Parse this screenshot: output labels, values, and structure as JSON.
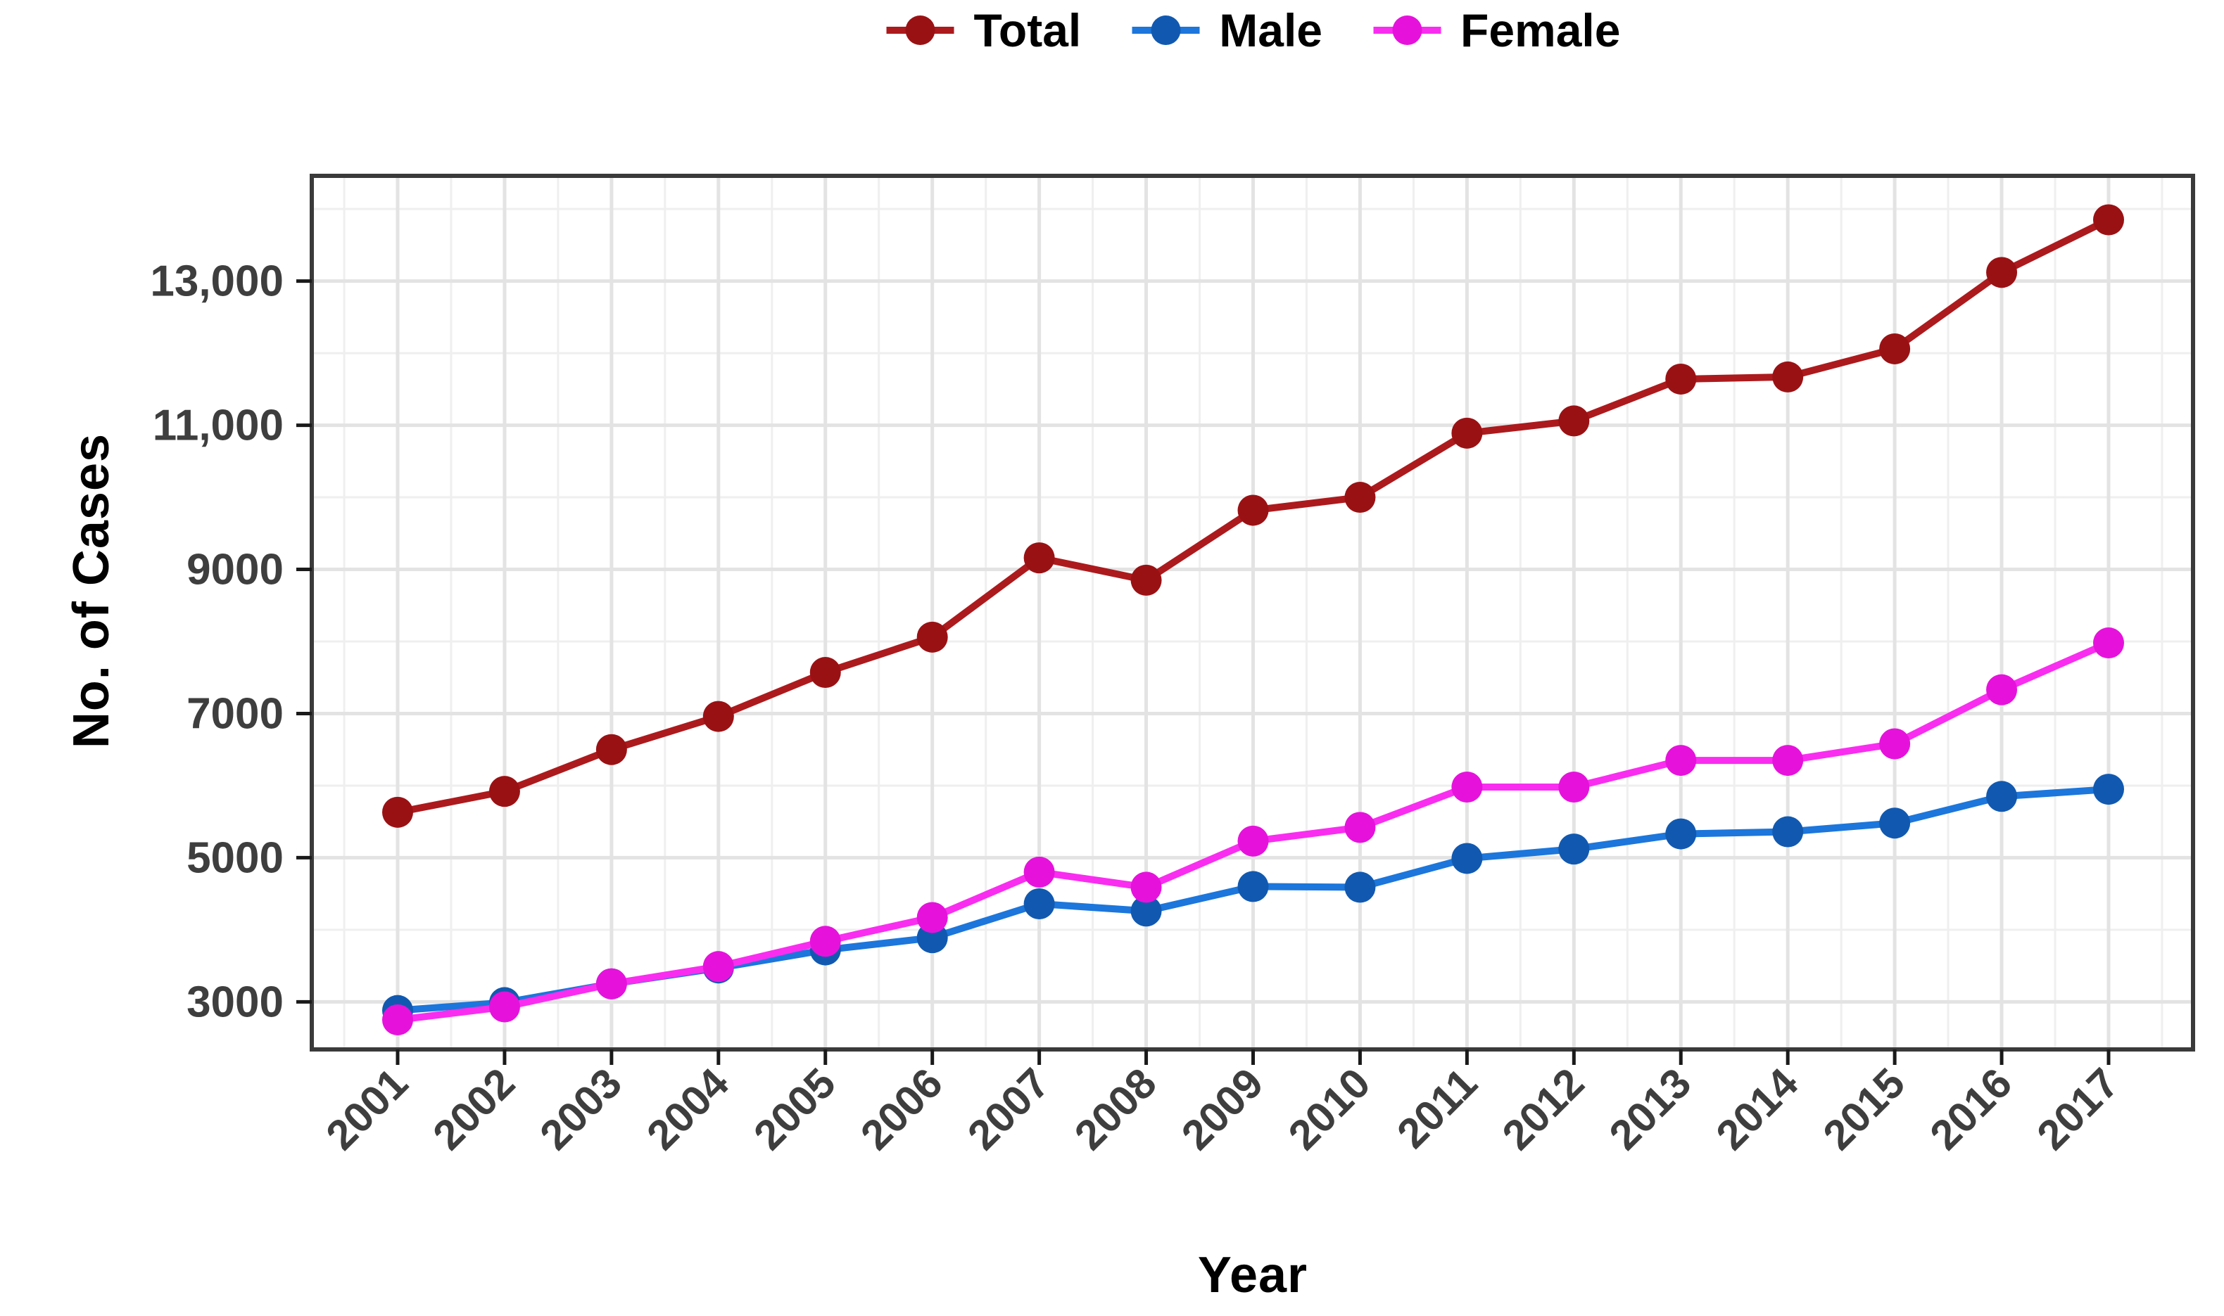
{
  "chart_data": {
    "type": "line",
    "title": "",
    "xlabel": "Year",
    "ylabel": "No. of Cases",
    "x": [
      2001,
      2002,
      2003,
      2004,
      2005,
      2006,
      2007,
      2008,
      2009,
      2010,
      2011,
      2012,
      2013,
      2014,
      2015,
      2016,
      2017
    ],
    "xtick_labels": [
      "2001",
      "2002",
      "2003",
      "2004",
      "2005",
      "2006",
      "2007",
      "2008",
      "2009",
      "2010",
      "2011",
      "2012",
      "2013",
      "2014",
      "2015",
      "2016",
      "2017"
    ],
    "series": [
      {
        "name": "Total",
        "line_color": "#AC1A1D",
        "marker_color": "#9A1114",
        "values": [
          5630,
          5920,
          6500,
          6960,
          7570,
          8060,
          9160,
          8850,
          9820,
          10000,
          10890,
          11060,
          11640,
          11670,
          12060,
          13120,
          13850
        ]
      },
      {
        "name": "Male",
        "line_color": "#1C76DB",
        "marker_color": "#1159B0",
        "values": [
          2880,
          2990,
          3250,
          3470,
          3720,
          3890,
          4360,
          4260,
          4600,
          4590,
          4990,
          5120,
          5330,
          5360,
          5480,
          5850,
          5950
        ]
      },
      {
        "name": "Female",
        "line_color": "#F92DF0",
        "marker_color": "#E612DC",
        "values": [
          2750,
          2930,
          3250,
          3490,
          3840,
          4170,
          4800,
          4590,
          5230,
          5420,
          5980,
          5980,
          6350,
          6350,
          6580,
          7330,
          7980
        ]
      }
    ],
    "yticks": [
      {
        "value": 3000,
        "label": "3000"
      },
      {
        "value": 5000,
        "label": "5000"
      },
      {
        "value": 7000,
        "label": "7000"
      },
      {
        "value": 9000,
        "label": "9000"
      },
      {
        "value": 11000,
        "label": "11,000"
      },
      {
        "value": 13000,
        "label": "13,000"
      }
    ],
    "yticks_minor": [
      4000,
      6000,
      8000,
      10000,
      12000,
      14000
    ],
    "ylim": [
      2340,
      14460
    ],
    "grid": true,
    "legend_position": "top",
    "colors": {
      "grid_major": "#E3E3E3",
      "grid_minor": "#EFEFEF",
      "panel_border": "#3A3A3A",
      "tick": "#1A1A1A",
      "tick_label": "#3E3E3E",
      "axis_title": "#000000"
    }
  }
}
